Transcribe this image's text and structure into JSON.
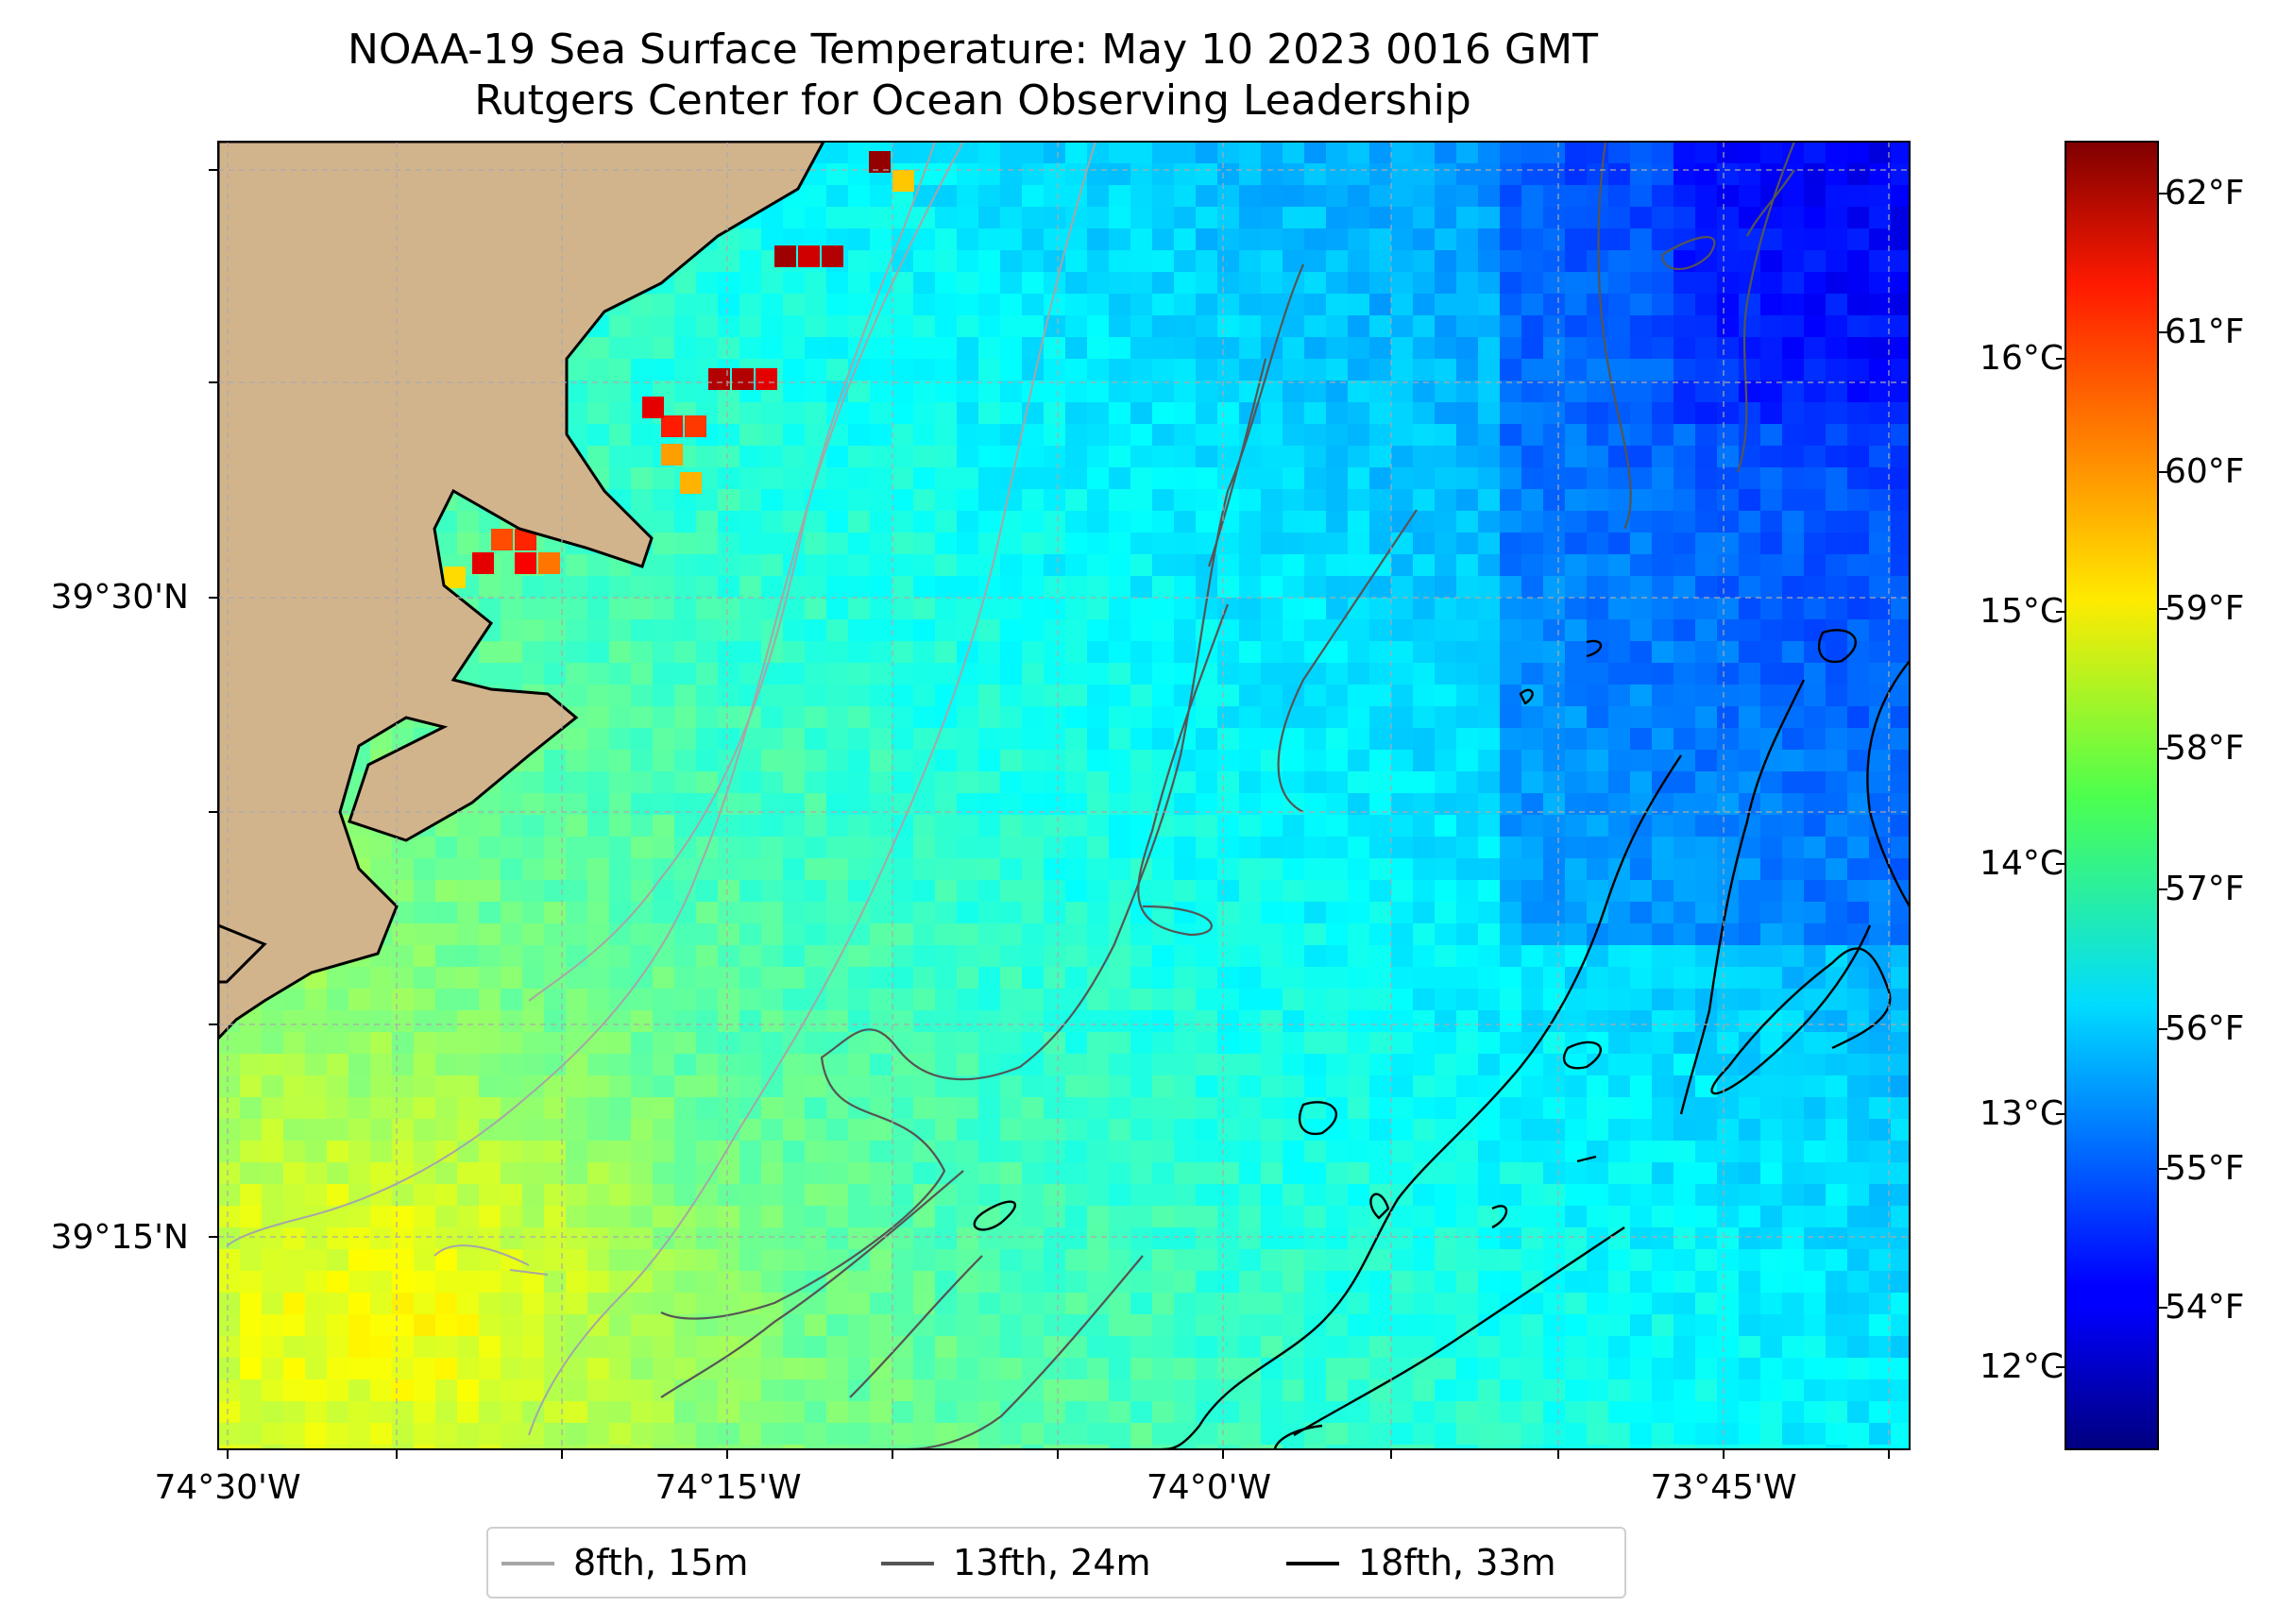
{
  "title": "NOAA-19 Sea Surface Temperature: May 10 2023 0016 GMT",
  "subtitle": "Rutgers Center for Ocean Observing Leadership",
  "lat_ticks": [
    "39°30'N",
    "39°15'N"
  ],
  "lon_ticks": [
    "74°30'W",
    "74°15'W",
    "74°0'W",
    "73°45'W"
  ],
  "colorbar": {
    "fahrenheit_ticks": [
      "62°F",
      "61°F",
      "60°F",
      "59°F",
      "58°F",
      "57°F",
      "56°F",
      "55°F",
      "54°F"
    ],
    "celsius_ticks": [
      "16°C",
      "15°C",
      "14°C",
      "13°C",
      "12°C"
    ],
    "colormap": "jet"
  },
  "legend": [
    {
      "label": "8fth, 15m",
      "color": "#a6a6a6"
    },
    {
      "label": "13fth, 24m",
      "color": "#555555"
    },
    {
      "label": "18fth, 33m",
      "color": "#000000"
    }
  ],
  "colors": {
    "land": "#d2b48c",
    "no_data": "#ffffff"
  }
}
